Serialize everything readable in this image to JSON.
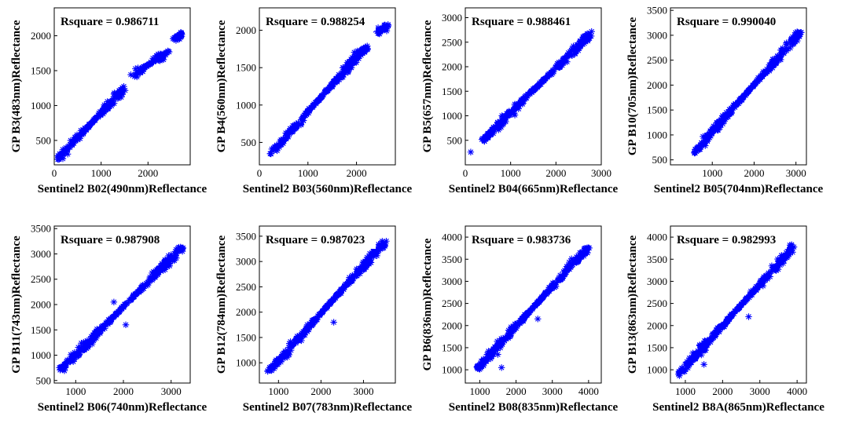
{
  "chart_data": [
    {
      "type": "scatter",
      "annotation": "Rsquare = 0.986711",
      "xlabel": "Sentinel2 B02(490nm)Reflectance",
      "ylabel": "GP B3(483nm)Reflectance",
      "xlim": [
        0,
        2900
      ],
      "ylim": [
        150,
        2400
      ],
      "xticks": [
        0,
        1000,
        2000
      ],
      "yticks": [
        500,
        1000,
        1500,
        2000
      ],
      "marker_color": "#0000ff",
      "segments": [
        {
          "x0": 100,
          "y0": 250,
          "x1": 1500,
          "y1": 1250
        },
        {
          "x0": 1700,
          "y0": 1450,
          "x1": 2450,
          "y1": 1780
        },
        {
          "x0": 2550,
          "y0": 1950,
          "x1": 2720,
          "y1": 2030
        }
      ],
      "outliers": [
        [
          80,
          230
        ]
      ]
    },
    {
      "type": "scatter",
      "annotation": "Rsquare = 0.988254",
      "xlabel": "Sentinel2 B03(560nm)Reflectance",
      "ylabel": "GP B4(560nm)Reflectance",
      "xlim": [
        0,
        2800
      ],
      "ylim": [
        200,
        2300
      ],
      "xticks": [
        0,
        1000,
        2000
      ],
      "yticks": [
        500,
        1000,
        1500,
        2000
      ],
      "marker_color": "#0000ff",
      "segments": [
        {
          "x0": 230,
          "y0": 350,
          "x1": 2200,
          "y1": 1780
        },
        {
          "x0": 2450,
          "y0": 1970,
          "x1": 2650,
          "y1": 2070
        }
      ],
      "outliers": []
    },
    {
      "type": "scatter",
      "annotation": "Rsquare = 0.988461",
      "xlabel": "Sentinel2 B04(665nm)Reflectance",
      "ylabel": "GP B5(657nm)Reflectance",
      "xlim": [
        0,
        3000
      ],
      "ylim": [
        0,
        3200
      ],
      "xticks": [
        0,
        1000,
        2000,
        3000
      ],
      "yticks": [
        500,
        1000,
        1500,
        2000,
        2500,
        3000
      ],
      "marker_color": "#0000ff",
      "segments": [
        {
          "x0": 380,
          "y0": 500,
          "x1": 2800,
          "y1": 2700
        }
      ],
      "outliers": [
        [
          120,
          260
        ]
      ]
    },
    {
      "type": "scatter",
      "annotation": "Rsquare = 0.990040",
      "xlabel": "Sentinel2 B05(704nm)Reflectance",
      "ylabel": "GP B10(705nm)Reflectance",
      "xlim": [
        0,
        3250
      ],
      "ylim": [
        400,
        3550
      ],
      "xticks": [
        1000,
        2000,
        3000
      ],
      "yticks": [
        500,
        1000,
        1500,
        2000,
        2500,
        3000,
        3500
      ],
      "marker_color": "#0000ff",
      "segments": [
        {
          "x0": 560,
          "y0": 650,
          "x1": 3100,
          "y1": 3050
        }
      ],
      "outliers": []
    },
    {
      "type": "scatter",
      "annotation": "Rsquare = 0.987908",
      "xlabel": "Sentinel2 B06(740nm)Reflectance",
      "ylabel": "GP B11(743nm)Reflectance",
      "xlim": [
        550,
        3400
      ],
      "ylim": [
        450,
        3550
      ],
      "xticks": [
        1000,
        2000,
        3000
      ],
      "yticks": [
        500,
        1000,
        1500,
        2000,
        2500,
        3000,
        3500
      ],
      "marker_color": "#0000ff",
      "segments": [
        {
          "x0": 700,
          "y0": 720,
          "x1": 3250,
          "y1": 3150
        }
      ],
      "outliers": [
        [
          1800,
          2050
        ],
        [
          2050,
          1600
        ]
      ]
    },
    {
      "type": "scatter",
      "annotation": "Rsquare = 0.987023",
      "xlabel": "Sentinel2 B07(783nm)Reflectance",
      "ylabel": "GP B12(784nm)Reflectance",
      "xlim": [
        550,
        3750
      ],
      "ylim": [
        600,
        3700
      ],
      "xticks": [
        1000,
        2000,
        3000
      ],
      "yticks": [
        1000,
        1500,
        2000,
        2500,
        3000,
        3500
      ],
      "marker_color": "#0000ff",
      "segments": [
        {
          "x0": 760,
          "y0": 820,
          "x1": 3500,
          "y1": 3380
        }
      ],
      "outliers": [
        [
          2300,
          1800
        ]
      ]
    },
    {
      "type": "scatter",
      "annotation": "Rsquare = 0.983736",
      "xlabel": "Sentinel2 B08(835nm)Reflectance",
      "ylabel": "GP B6(836nm)Reflectance",
      "xlim": [
        600,
        4350
      ],
      "ylim": [
        700,
        4250
      ],
      "xticks": [
        1000,
        2000,
        3000,
        4000
      ],
      "yticks": [
        1000,
        1500,
        2000,
        2500,
        3000,
        3500,
        4000
      ],
      "marker_color": "#0000ff",
      "segments": [
        {
          "x0": 900,
          "y0": 1000,
          "x1": 4000,
          "y1": 3780
        }
      ],
      "outliers": [
        [
          1600,
          1050
        ],
        [
          2600,
          2150
        ]
      ]
    },
    {
      "type": "scatter",
      "annotation": "Rsquare = 0.982993",
      "xlabel": "Sentinel2 B8A(865nm)Reflectance",
      "ylabel": "GP B13(863nm)Reflectance",
      "xlim": [
        600,
        4250
      ],
      "ylim": [
        700,
        4250
      ],
      "xticks": [
        1000,
        2000,
        3000,
        4000
      ],
      "yticks": [
        1000,
        1500,
        2000,
        2500,
        3000,
        3500,
        4000
      ],
      "marker_color": "#0000ff",
      "segments": [
        {
          "x0": 850,
          "y0": 920,
          "x1": 3900,
          "y1": 3780
        }
      ],
      "outliers": [
        [
          1500,
          1120
        ],
        [
          2700,
          2200
        ]
      ]
    }
  ]
}
